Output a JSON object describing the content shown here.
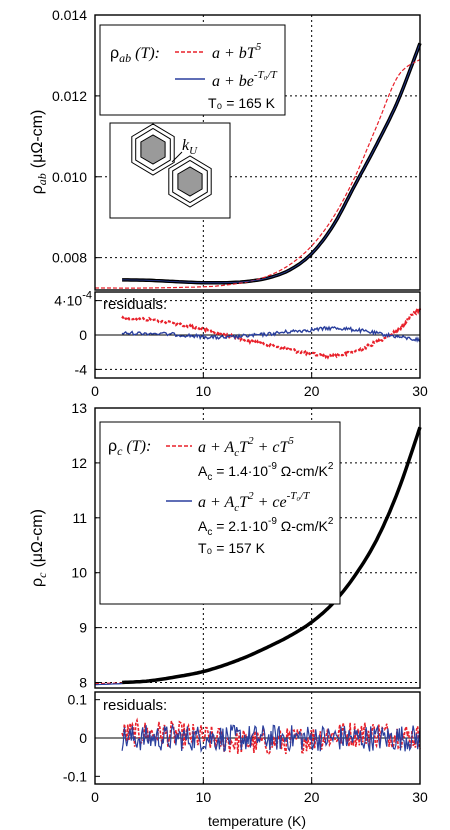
{
  "chart_data": [
    {
      "type": "line",
      "panel": "rho_ab",
      "ylabel_symbol": "ρ",
      "ylabel_sub": "ab",
      "ylabel_unit": "(μΩ-cm)",
      "xlim": [
        0,
        30
      ],
      "ylim": [
        0.0072,
        0.014
      ],
      "xticks": [
        "0",
        "10",
        "20",
        "30"
      ],
      "yticks": [
        {
          "v": 0.008,
          "label": "0.008"
        },
        {
          "v": 0.01,
          "label": "0.010"
        },
        {
          "v": 0.012,
          "label": "0.012"
        },
        {
          "v": 0.014,
          "label": "0.014"
        }
      ],
      "grid": true,
      "series": [
        {
          "color": "#000000",
          "x": [
            2.5,
            5,
            8,
            10,
            12,
            14,
            16,
            18,
            20,
            22,
            24,
            26,
            28,
            30
          ],
          "y": [
            0.00745,
            0.00744,
            0.0074,
            0.00738,
            0.00738,
            0.00741,
            0.0075,
            0.0077,
            0.0081,
            0.0088,
            0.0098,
            0.0108,
            0.0119,
            0.0133
          ]
        },
        {
          "color": "#e8202a",
          "x": [
            0,
            5,
            10,
            12,
            14,
            16,
            18,
            20,
            22,
            24,
            26,
            28,
            30
          ],
          "y": [
            0.00725,
            0.00725,
            0.00728,
            0.00732,
            0.0074,
            0.00755,
            0.00783,
            0.00829,
            0.009,
            0.01,
            0.01125,
            0.0125,
            0.0129
          ]
        },
        {
          "color": "#2a3f9d",
          "x": [
            2.5,
            5,
            8,
            10,
            12,
            14,
            16,
            18,
            20,
            22,
            24,
            26,
            28,
            30
          ],
          "y": [
            0.00745,
            0.00744,
            0.0074,
            0.00738,
            0.00738,
            0.00741,
            0.0075,
            0.0077,
            0.0081,
            0.0088,
            0.0098,
            0.0108,
            0.0119,
            0.0133
          ]
        }
      ],
      "legend": {
        "title_symbol": "ρ",
        "title_sub": "ab",
        "title_arg": " (T):",
        "entry1": "a + bT",
        "entry1_sup": "5",
        "entry2": "a + be",
        "entry2_sup": "-T₀/T",
        "param": "T₀ = 165 K"
      },
      "inset_label": "k",
      "inset_label_sub": "U"
    },
    {
      "type": "line",
      "panel": "rho_ab_residuals",
      "label": "residuals:",
      "xlim": [
        0,
        30
      ],
      "ylim": [
        -5,
        5
      ],
      "yticks": [
        {
          "v": 4,
          "label": "4·10",
          "sup": "-4"
        },
        {
          "v": 0,
          "label": "0"
        },
        {
          "v": -4,
          "label": "-4"
        }
      ],
      "xticks": [
        "0",
        "10",
        "20",
        "30"
      ],
      "series": [
        {
          "color": "#e8202a",
          "x": [
            2.5,
            5,
            8,
            10,
            12,
            14,
            16,
            18,
            20,
            22,
            24,
            26,
            28,
            29,
            30
          ],
          "y": [
            2.0,
            1.8,
            1.2,
            0.6,
            0.0,
            -0.6,
            -1.1,
            -1.7,
            -2.2,
            -2.4,
            -1.9,
            -0.8,
            0.6,
            2.0,
            3.0
          ]
        },
        {
          "color": "#2a3f9d",
          "x": [
            2.5,
            5,
            8,
            10,
            12,
            14,
            16,
            18,
            20,
            22,
            24,
            26,
            28,
            30
          ],
          "y": [
            0.2,
            0.2,
            0.0,
            -0.2,
            -0.3,
            -0.1,
            0.1,
            0.4,
            0.6,
            0.8,
            0.6,
            0.2,
            -0.2,
            -0.6
          ]
        }
      ]
    },
    {
      "type": "line",
      "panel": "rho_c",
      "ylabel_symbol": "ρ",
      "ylabel_sub": "c",
      "ylabel_unit": "(μΩ-cm)",
      "xlim": [
        0,
        30
      ],
      "ylim": [
        7.9,
        13
      ],
      "xticks": [
        "0",
        "10",
        "20",
        "30"
      ],
      "yticks": [
        {
          "v": 8,
          "label": "8"
        },
        {
          "v": 9,
          "label": "9"
        },
        {
          "v": 10,
          "label": "10"
        },
        {
          "v": 11,
          "label": "11"
        },
        {
          "v": 12,
          "label": "12"
        },
        {
          "v": 13,
          "label": "13"
        }
      ],
      "grid": true,
      "series": [
        {
          "color": "#e8202a",
          "x": [
            0,
            2.5
          ],
          "y": [
            7.98,
            7.99
          ]
        },
        {
          "color": "#2a3f9d",
          "x": [
            0,
            2.5
          ],
          "y": [
            7.96,
            7.98
          ]
        },
        {
          "color": "#000000",
          "x": [
            2.5,
            5,
            8,
            10,
            12,
            14,
            16,
            18,
            20,
            22,
            24,
            26,
            28,
            30
          ],
          "y": [
            8.0,
            8.03,
            8.12,
            8.2,
            8.32,
            8.47,
            8.65,
            8.85,
            9.1,
            9.45,
            9.95,
            10.6,
            11.5,
            12.65
          ]
        }
      ],
      "legend": {
        "title_symbol": "ρ",
        "title_sub": "c",
        "title_arg": " (T):",
        "entry1": "a + A",
        "entry1_sub": "c",
        "entry1_mid": "T",
        "entry1_sup1": "2",
        "entry1_tail": " + cT",
        "entry1_sup2": "5",
        "param1_name": "A",
        "param1_sub": "c",
        "param1_val": " = 1.4·10",
        "param1_exp": "-9",
        "param1_unit": " Ω-cm/K",
        "param1_unit_sup": "2",
        "entry2": "a + A",
        "entry2_sub": "c",
        "entry2_mid": "T",
        "entry2_sup1": "2",
        "entry2_tail": " + ce",
        "entry2_sup2": "-T₀/T",
        "param2_name": "A",
        "param2_sub": "c",
        "param2_val": " = 2.1·10",
        "param2_exp": "-9",
        "param2_unit": " Ω-cm/K",
        "param2_unit_sup": "2",
        "param3": "T₀ = 157 K"
      }
    },
    {
      "type": "line",
      "panel": "rho_c_residuals",
      "label": "residuals:",
      "xlim": [
        0,
        30
      ],
      "ylim": [
        -0.12,
        0.12
      ],
      "yticks": [
        {
          "v": 0.1,
          "label": "0.1"
        },
        {
          "v": 0,
          "label": "0"
        },
        {
          "v": -0.1,
          "label": "-0.1"
        }
      ],
      "xticks": [
        "0",
        "10",
        "20",
        "30"
      ],
      "xlabel": "temperature (K)",
      "noise_amplitude": 0.035,
      "series": [
        {
          "color": "#e8202a"
        },
        {
          "color": "#2a3f9d"
        }
      ]
    }
  ]
}
